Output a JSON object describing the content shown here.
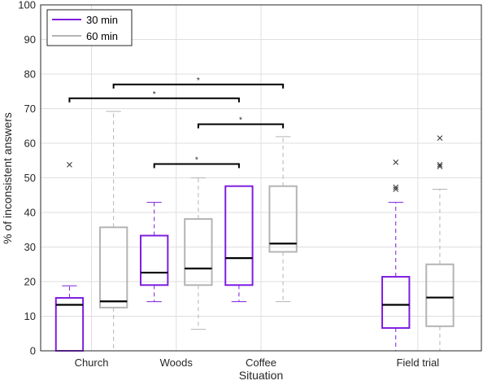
{
  "chart_data": {
    "type": "box",
    "xlabel": "Situation",
    "ylabel": "% of inconsistent answers",
    "ylim": [
      0,
      100
    ],
    "yticks": [
      "0",
      "10",
      "20",
      "30",
      "40",
      "50",
      "60",
      "70",
      "80",
      "90",
      "100"
    ],
    "grid": true,
    "legend_position": "top-left",
    "categories": [
      "Church",
      "Woods",
      "Coffee",
      "Field trial"
    ],
    "series": [
      {
        "name": "30 min",
        "color": "#7e1ee0",
        "boxes": [
          {
            "category": "Church",
            "whisker_low": 0,
            "q1": 0,
            "median": 13.3,
            "q3": 15.3,
            "whisker_high": 18.8,
            "outliers": [
              53.8
            ]
          },
          {
            "category": "Woods",
            "whisker_low": 14.2,
            "q1": 19.0,
            "median": 22.6,
            "q3": 33.3,
            "whisker_high": 42.9,
            "outliers": []
          },
          {
            "category": "Coffee",
            "whisker_low": 14.2,
            "q1": 19.0,
            "median": 26.8,
            "q3": 47.6,
            "whisker_high": 47.6,
            "outliers": []
          },
          {
            "category": "Field trial",
            "whisker_low": 0,
            "q1": 6.6,
            "median": 13.3,
            "q3": 21.4,
            "whisker_high": 42.9,
            "outliers": [
              46.7,
              47.3,
              54.5
            ]
          }
        ]
      },
      {
        "name": "60 min",
        "color": "#b4b4b4",
        "boxes": [
          {
            "category": "Church",
            "whisker_low": 0,
            "q1": 12.5,
            "median": 14.3,
            "q3": 35.7,
            "whisker_high": 69.2,
            "outliers": []
          },
          {
            "category": "Woods",
            "whisker_low": 6.2,
            "q1": 19.0,
            "median": 23.8,
            "q3": 38.1,
            "whisker_high": 50.0,
            "outliers": []
          },
          {
            "category": "Coffee",
            "whisker_low": 14.2,
            "q1": 28.6,
            "median": 31.0,
            "q3": 47.6,
            "whisker_high": 61.9,
            "outliers": []
          },
          {
            "category": "Field trial",
            "whisker_low": 0,
            "q1": 7.1,
            "median": 15.4,
            "q3": 25.0,
            "whisker_high": 46.7,
            "outliers": [
              53.3,
              53.8,
              61.5
            ]
          }
        ]
      }
    ],
    "significance_brackets": [
      {
        "from": "Church 30 min",
        "to": "Coffee 30 min",
        "y": 73,
        "label": "*"
      },
      {
        "from": "Church 60 min",
        "to": "Coffee 60 min",
        "y": 77,
        "label": "*"
      },
      {
        "from": "Woods 60 min",
        "to": "Coffee 60 min",
        "y": 65.5,
        "label": "*"
      },
      {
        "from": "Woods 30 min",
        "to": "Coffee 30 min",
        "y": 54,
        "label": "*"
      }
    ]
  }
}
